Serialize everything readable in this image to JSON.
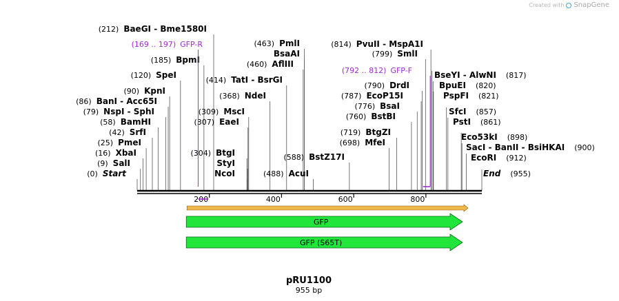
{
  "credit": {
    "prefix": "Created with",
    "brand": "SnapGene"
  },
  "plasmid": {
    "name": "pRU1100",
    "size_label": "955 bp",
    "length": 955
  },
  "axis": {
    "ticks": [
      200,
      400,
      600,
      800
    ]
  },
  "colors": {
    "primer": "#a12bd0",
    "feature": "#22e53b",
    "orf": "#f2b64e",
    "backbone": "#000000"
  },
  "features": [
    {
      "name": "GFP",
      "start": 138,
      "end": 890,
      "row": 1
    },
    {
      "name": "GFP (S65T)",
      "start": 138,
      "end": 890,
      "row": 2
    }
  ],
  "orf": {
    "start": 138,
    "end": 890
  },
  "primers": [
    {
      "name": "GFP-R",
      "pos_label": "(169 .. 197)",
      "start": 169,
      "end": 197,
      "direction": "reverse"
    },
    {
      "name": "GFP-F",
      "pos_label": "(792 .. 812)",
      "start": 792,
      "end": 812,
      "direction": "forward"
    }
  ],
  "sites_left": [
    {
      "name": "Start",
      "pos": 0,
      "pos_label": "(0)",
      "italic": true
    },
    {
      "name": "SalI",
      "pos": 9,
      "pos_label": "(9)"
    },
    {
      "name": "XbaI",
      "pos": 16,
      "pos_label": "(16)"
    },
    {
      "name": "PmeI",
      "pos": 25,
      "pos_label": "(25)"
    },
    {
      "name": "SrfI",
      "pos": 42,
      "pos_label": "(42)"
    },
    {
      "name": "BamHI",
      "pos": 58,
      "pos_label": "(58)"
    },
    {
      "name": "NspI - SphI",
      "pos": 79,
      "pos_label": "(79)"
    },
    {
      "name": "BanI - Acc65I",
      "pos": 86,
      "pos_label": "(86)"
    },
    {
      "name": "KpnI",
      "pos": 90,
      "pos_label": "(90)"
    },
    {
      "name": "SpeI",
      "pos": 120,
      "pos_label": "(120)"
    },
    {
      "name": "BpmI",
      "pos": 185,
      "pos_label": "(185)"
    },
    {
      "name": "BaeGI - Bme1580I",
      "pos": 212,
      "pos_label": "(212)"
    }
  ],
  "sites_middle": [
    {
      "name": "NcoI",
      "pos": 306
    },
    {
      "name": "StyI",
      "pos": 306
    },
    {
      "name": "BtgI",
      "pos": 304,
      "pos_label": "(304)"
    },
    {
      "name": "EaeI",
      "pos": 307,
      "pos_label": "(307)"
    },
    {
      "name": "MscI",
      "pos": 309,
      "pos_label": "(309)"
    },
    {
      "name": "NdeI",
      "pos": 368,
      "pos_label": "(368)"
    },
    {
      "name": "TatI - BsrGI",
      "pos": 414,
      "pos_label": "(414)"
    },
    {
      "name": "AflIII",
      "pos": 460,
      "pos_label": "(460)"
    },
    {
      "name": "BsaAI",
      "pos": 463
    },
    {
      "name": "PmlI",
      "pos": 463,
      "pos_label": "(463)"
    },
    {
      "name": "AcuI",
      "pos": 488,
      "pos_label": "(488)"
    },
    {
      "name": "BstZ17I",
      "pos": 588,
      "pos_label": "(588)"
    }
  ],
  "sites_right_stack": [
    {
      "name": "MfeI",
      "pos": 698,
      "pos_label": "(698)"
    },
    {
      "name": "BtgZI",
      "pos": 719,
      "pos_label": "(719)"
    },
    {
      "name": "BstBI",
      "pos": 760,
      "pos_label": "(760)"
    },
    {
      "name": "BsaI",
      "pos": 776,
      "pos_label": "(776)"
    },
    {
      "name": "EcoP15I",
      "pos": 787,
      "pos_label": "(787)"
    },
    {
      "name": "DrdI",
      "pos": 790,
      "pos_label": "(790)"
    },
    {
      "name": "SmlI",
      "pos": 799,
      "pos_label": "(799)"
    },
    {
      "name": "PvuII - MspA1I",
      "pos": 814,
      "pos_label": "(814)"
    }
  ],
  "sites_far_right": [
    {
      "name": "BseYI - AlwNI",
      "pos": 817,
      "pos_label": "(817)"
    },
    {
      "name": "BpuEI",
      "pos": 820,
      "pos_label": "(820)"
    },
    {
      "name": "PspFI",
      "pos": 821,
      "pos_label": "(821)"
    },
    {
      "name": "SfcI",
      "pos": 857,
      "pos_label": "(857)"
    },
    {
      "name": "PstI",
      "pos": 861,
      "pos_label": "(861)"
    },
    {
      "name": "Eco53kI",
      "pos": 898,
      "pos_label": "(898)"
    },
    {
      "name": "SacI - BanII - BsiHKAI",
      "pos": 900,
      "pos_label": "(900)"
    },
    {
      "name": "EcoRI",
      "pos": 912,
      "pos_label": "(912)"
    },
    {
      "name": "End",
      "pos": 955,
      "pos_label": "(955)",
      "italic": true
    }
  ]
}
